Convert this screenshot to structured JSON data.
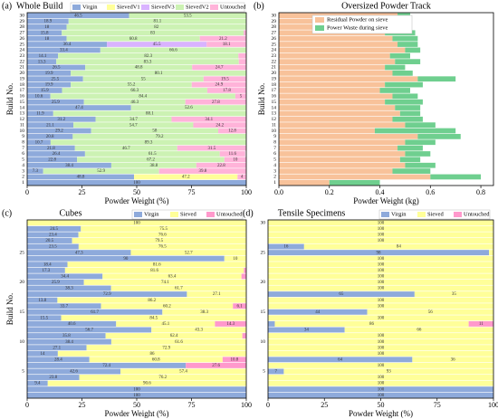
{
  "chart_data": [
    {
      "type": "stacked_barh",
      "panel": "(a)",
      "title": "Whole Build",
      "ylabel": "Build No.",
      "xlabel": "Powder Weight (%)",
      "categories": [
        "1",
        "2",
        "3",
        "4",
        "5",
        "6",
        "7",
        "8",
        "9",
        "10",
        "11",
        "12",
        "13",
        "14",
        "15",
        "16",
        "17",
        "18",
        "19",
        "20",
        "21",
        "22",
        "23",
        "24",
        "25",
        "26",
        "27",
        "28",
        "29",
        "30"
      ],
      "xlim": [
        0,
        100
      ],
      "xticks": [
        0,
        25,
        50,
        75,
        100
      ],
      "legend": "top",
      "series": [
        {
          "name": "Virgin",
          "color": "#8eaadb",
          "values": [
            100,
            48.8,
            7.3,
            38.4,
            22.8,
            26.4,
            21.8,
            10.7,
            20.8,
            29.2,
            21.1,
            31.2,
            11.9,
            47.4,
            25.9,
            10.6,
            15.9,
            19.9,
            25.5,
            19.9,
            26.5,
            13.3,
            14.1,
            33.4,
            36.4,
            18.0,
            15.8,
            18.0,
            18.9,
            46.5
          ]
        },
        {
          "name": "SievedV1",
          "color": "#ffff99",
          "values": [
            0,
            47.2,
            0,
            0,
            0,
            0,
            0,
            0,
            0,
            0,
            0,
            0,
            0,
            0,
            0,
            0,
            0,
            0,
            0,
            0,
            0,
            0,
            0,
            0,
            0,
            0,
            0,
            0,
            0,
            0
          ]
        },
        {
          "name": "SievedV3",
          "color": "#d9b3ff",
          "values": [
            0,
            0,
            0,
            0,
            0,
            0,
            0,
            0,
            0,
            0,
            0,
            0,
            0,
            0,
            0,
            0,
            0,
            0,
            0,
            0,
            0,
            0,
            0,
            0,
            45.5,
            0,
            0,
            0,
            0,
            0
          ]
        },
        {
          "name": "SievedV2",
          "color": "#ccf2b3",
          "values": [
            0,
            0,
            52.9,
            38.8,
            67.2,
            61.5,
            46.7,
            89.3,
            79.2,
            58.0,
            54.7,
            34.7,
            88.1,
            52.6,
            46.3,
            84.4,
            66.3,
            55.2,
            55.0,
            80.1,
            48.8,
            83.3,
            82.3,
            66.6,
            0,
            60.8,
            83.0,
            82.0,
            81.1,
            53.5
          ]
        },
        {
          "name": "Untouched",
          "color": "#ffb3d9",
          "values": [
            0,
            4.0,
            39.8,
            22.8,
            10.0,
            11.6,
            31.5,
            0,
            0,
            12.8,
            24.2,
            34.1,
            0,
            0,
            27.8,
            5.0,
            17.8,
            24.9,
            19.5,
            0,
            24.7,
            3.4,
            3.6,
            0,
            18.1,
            21.2,
            1.2,
            0,
            0,
            0
          ]
        }
      ]
    },
    {
      "type": "stacked_barh",
      "panel": "(b)",
      "title": "Oversized Powder Track",
      "ylabel": "Build No.",
      "xlabel": "Powder Weight (kg)",
      "categories": [
        "1",
        "2",
        "3",
        "4",
        "5",
        "6",
        "7",
        "8",
        "9",
        "10",
        "11",
        "12",
        "13",
        "14",
        "15",
        "16",
        "17",
        "18",
        "19",
        "20",
        "21",
        "22",
        "23",
        "24",
        "25",
        "26",
        "27",
        "28",
        "29",
        "30"
      ],
      "xlim": [
        0,
        0.85
      ],
      "xticks": [
        {
          "value": 0,
          "label": "0.0"
        },
        0.2,
        0.4,
        0.6,
        0.8
      ],
      "legend": "top",
      "series": [
        {
          "name": "Residual Powder on sieve",
          "color": "#f8c29a",
          "values": [
            0.2,
            0.6,
            0.45,
            0.5,
            0.48,
            0.5,
            0.47,
            0.5,
            0.55,
            0.38,
            0.5,
            0.45,
            0.48,
            0.46,
            0.42,
            0.45,
            0.4,
            0.42,
            0.55,
            0.45,
            0.42,
            0.46,
            0.44,
            0.5,
            0.47,
            0.45,
            0.42,
            0.43,
            0.4,
            0.47
          ]
        },
        {
          "name": "Power Waste during sieve",
          "color": "#6fcf8f",
          "values": [
            0.2,
            0.2,
            0.15,
            0.12,
            0.08,
            0.1,
            0.1,
            0.12,
            0.17,
            0.32,
            0.12,
            0.12,
            0.08,
            0.1,
            0.15,
            0.1,
            0.12,
            0.15,
            0.15,
            0.08,
            0.08,
            0.1,
            0.08,
            0.06,
            0.08,
            0.1,
            0.12,
            0.08,
            0.1,
            0.05
          ]
        }
      ]
    },
    {
      "type": "stacked_barh",
      "panel": "(c)",
      "title": "Cubes",
      "ylabel": "Build No.",
      "xlabel": "Powder Weight (%)",
      "categories": [
        null,
        null,
        null,
        null,
        "5",
        null,
        null,
        null,
        null,
        "10",
        null,
        null,
        null,
        null,
        "15",
        null,
        null,
        null,
        null,
        "20",
        null,
        null,
        null,
        null,
        "25",
        null,
        null,
        null,
        null,
        null
      ],
      "xlim": [
        0,
        100
      ],
      "xticks": [
        0,
        25,
        50,
        75,
        100
      ],
      "legend": "top",
      "series": [
        {
          "name": "Virgin",
          "color": "#8eaadb",
          "values": [
            100,
            100,
            9.4,
            23.8,
            42.6,
            72.4,
            28.4,
            14.0,
            27.1,
            38.4,
            35.8,
            56.7,
            40.6,
            15.5,
            61.7,
            33.7,
            13.8,
            72.9,
            38.3,
            25.9,
            34.4,
            17.3,
            18.4,
            90.0,
            47.3,
            23.5,
            20.5,
            23.4,
            24.5,
            0
          ]
        },
        {
          "name": "Sieved",
          "color": "#ffff99",
          "values": [
            0,
            0,
            90.6,
            76.2,
            57.4,
            0,
            60.8,
            86.0,
            72.9,
            61.6,
            62.4,
            43.3,
            45.1,
            84.5,
            38.3,
            60.2,
            86.2,
            27.1,
            61.7,
            74.1,
            63.4,
            81.6,
            81.6,
            10.0,
            52.7,
            76.5,
            79.5,
            76.6,
            75.5,
            100
          ]
        },
        {
          "name": "Untouched",
          "color": "#ff99cc",
          "values": [
            0,
            0,
            0,
            0,
            0,
            27.6,
            10.8,
            0,
            0,
            0,
            1.8,
            0,
            14.3,
            0,
            0,
            6.1,
            0,
            0,
            0,
            0,
            2.2,
            1.1,
            0,
            0,
            0,
            0,
            0,
            0,
            0,
            0
          ]
        }
      ]
    },
    {
      "type": "stacked_barh",
      "panel": "(d)",
      "title": "Tensile Specimens",
      "xlabel": "Powder Weight (%)",
      "categories": [
        null,
        null,
        null,
        null,
        "5",
        null,
        null,
        null,
        null,
        "10",
        null,
        null,
        null,
        null,
        "15",
        null,
        null,
        null,
        null,
        "20",
        null,
        null,
        null,
        null,
        "25",
        null,
        null,
        null,
        null,
        "30"
      ],
      "xlim": [
        0,
        100
      ],
      "xticks": [
        0,
        25,
        50,
        75,
        100
      ],
      "legend": "top",
      "series": [
        {
          "name": "Virgin",
          "color": "#8eaadb",
          "values": [
            100,
            100,
            0,
            0,
            7,
            0,
            64,
            0,
            0,
            0,
            0,
            34,
            3,
            0,
            44,
            0,
            0,
            65,
            0,
            0,
            0,
            0,
            0,
            0,
            98,
            16,
            0,
            0,
            0,
            0
          ]
        },
        {
          "name": "Sieved",
          "color": "#ffff99",
          "values": [
            0,
            0,
            100,
            100,
            93,
            100,
            36,
            100,
            100,
            100,
            100,
            66,
            86,
            100,
            56,
            100,
            100,
            35,
            100,
            100,
            100,
            100,
            100,
            100,
            2,
            84,
            100,
            100,
            100,
            100
          ]
        },
        {
          "name": "Untouched",
          "color": "#ff99cc",
          "values": [
            0,
            0,
            0,
            0,
            0,
            0,
            0,
            0,
            0,
            0,
            0,
            0,
            11,
            0,
            0,
            0,
            0,
            0,
            0,
            0,
            0,
            0,
            0,
            0,
            0,
            0,
            0,
            0,
            0,
            0
          ]
        }
      ]
    }
  ]
}
